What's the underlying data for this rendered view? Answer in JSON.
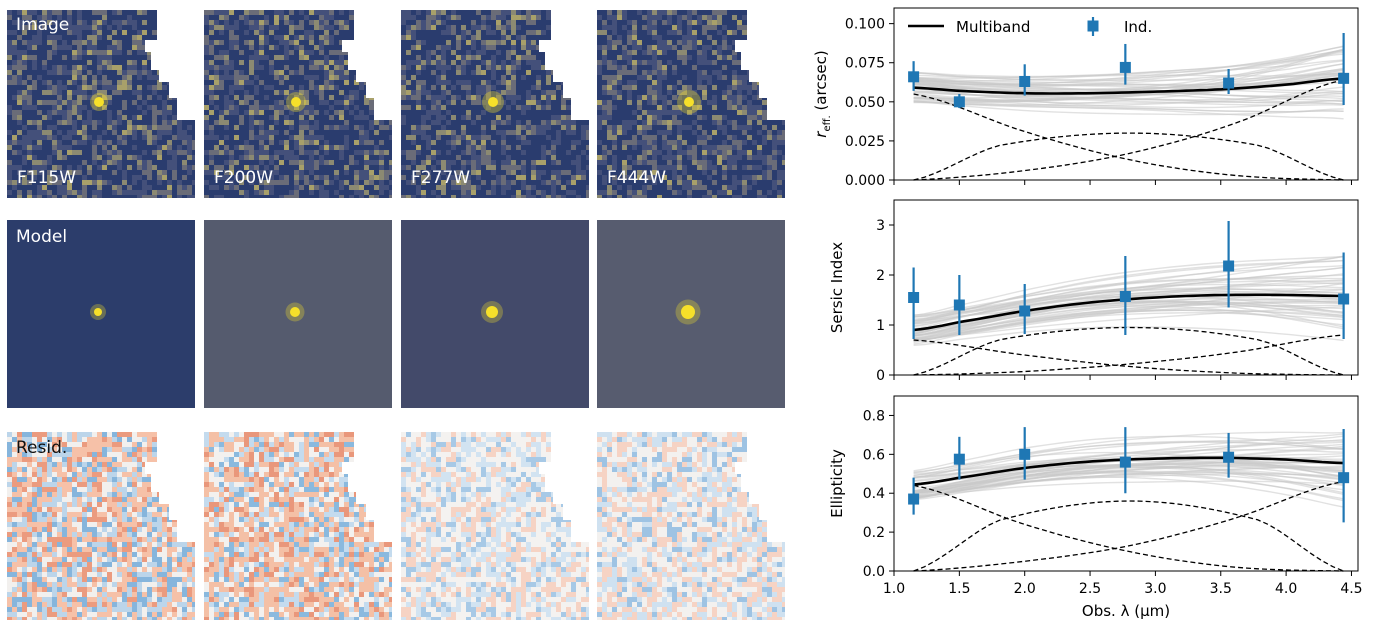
{
  "image_grid": {
    "row_labels": [
      "Image",
      "Model",
      "Resid."
    ],
    "bands": [
      "F115W",
      "F200W",
      "F277W",
      "F444W"
    ],
    "model_backgrounds": [
      "#2c3d6b",
      "#555b6e",
      "#434a6a",
      "#575c6f"
    ],
    "source_color": "#f6e02a"
  },
  "chart_data": [
    {
      "type": "line",
      "panel": "reff",
      "ylabel_main": "r",
      "ylabel_sub": "eff.",
      "ylabel_tail": " (arcsec)",
      "xlim": [
        1.0,
        4.55
      ],
      "ylim": [
        0.0,
        0.11
      ],
      "yticks": [
        0.0,
        0.025,
        0.05,
        0.075,
        0.1
      ],
      "ytick_labels": [
        "0.000",
        "0.025",
        "0.050",
        "0.075",
        "0.100"
      ],
      "legend": {
        "multiband": "Multiband",
        "ind": "Ind.",
        "position": "top"
      },
      "multiband_curve": {
        "x": [
          1.15,
          1.5,
          2.0,
          2.5,
          3.0,
          3.5,
          4.0,
          4.44
        ],
        "y": [
          0.059,
          0.057,
          0.0555,
          0.0555,
          0.0565,
          0.058,
          0.061,
          0.065
        ]
      },
      "dashed_basis": [
        {
          "x": [
            1.15,
            2.0,
            2.8,
            3.6,
            4.44
          ],
          "y": [
            0.055,
            0.031,
            0.013,
            0.003,
            0.0
          ]
        },
        {
          "x": [
            1.15,
            1.8,
            2.8,
            3.8,
            4.44
          ],
          "y": [
            0.0,
            0.022,
            0.03,
            0.022,
            0.0
          ]
        },
        {
          "x": [
            1.15,
            2.0,
            2.8,
            3.6,
            4.44
          ],
          "y": [
            0.0,
            0.006,
            0.017,
            0.036,
            0.064
          ]
        }
      ],
      "points": [
        {
          "x": 1.15,
          "y": 0.066,
          "lo": 0.057,
          "hi": 0.076
        },
        {
          "x": 1.5,
          "y": 0.05,
          "lo": 0.046,
          "hi": 0.055
        },
        {
          "x": 2.0,
          "y": 0.063,
          "lo": 0.054,
          "hi": 0.074
        },
        {
          "x": 2.77,
          "y": 0.072,
          "lo": 0.061,
          "hi": 0.087
        },
        {
          "x": 3.56,
          "y": 0.062,
          "lo": 0.055,
          "hi": 0.071
        },
        {
          "x": 4.44,
          "y": 0.065,
          "lo": 0.048,
          "hi": 0.094
        }
      ]
    },
    {
      "type": "line",
      "panel": "sersic",
      "ylabel": "Sersic Index",
      "xlim": [
        1.0,
        4.55
      ],
      "ylim": [
        0.0,
        3.5
      ],
      "yticks": [
        0,
        1,
        2,
        3
      ],
      "ytick_labels": [
        "0",
        "1",
        "2",
        "3"
      ],
      "multiband_curve": {
        "x": [
          1.15,
          1.5,
          2.0,
          2.5,
          3.0,
          3.5,
          4.0,
          4.44
        ],
        "y": [
          0.9,
          1.06,
          1.28,
          1.45,
          1.55,
          1.6,
          1.6,
          1.58
        ]
      },
      "dashed_basis": [
        {
          "x": [
            1.15,
            2.0,
            2.8,
            3.6,
            4.44
          ],
          "y": [
            0.7,
            0.4,
            0.17,
            0.04,
            0.0
          ]
        },
        {
          "x": [
            1.15,
            1.8,
            2.8,
            3.8,
            4.44
          ],
          "y": [
            0.0,
            0.7,
            0.95,
            0.7,
            0.0
          ]
        },
        {
          "x": [
            1.15,
            2.0,
            2.8,
            3.6,
            4.44
          ],
          "y": [
            0.0,
            0.07,
            0.22,
            0.45,
            0.8
          ]
        }
      ],
      "points": [
        {
          "x": 1.15,
          "y": 1.55,
          "lo": 0.72,
          "hi": 2.15
        },
        {
          "x": 1.5,
          "y": 1.4,
          "lo": 0.8,
          "hi": 2.0
        },
        {
          "x": 2.0,
          "y": 1.28,
          "lo": 0.82,
          "hi": 1.82
        },
        {
          "x": 2.77,
          "y": 1.57,
          "lo": 0.8,
          "hi": 2.38
        },
        {
          "x": 3.56,
          "y": 2.18,
          "lo": 1.35,
          "hi": 3.08
        },
        {
          "x": 4.44,
          "y": 1.52,
          "lo": 0.72,
          "hi": 2.45
        }
      ]
    },
    {
      "type": "line",
      "panel": "ellipticity",
      "ylabel": "Ellipticity",
      "xlabel": "Obs. λ (μm)",
      "xlim": [
        1.0,
        4.55
      ],
      "ylim": [
        0.0,
        0.9
      ],
      "yticks": [
        0.0,
        0.2,
        0.4,
        0.6,
        0.8
      ],
      "ytick_labels": [
        "0.0",
        "0.2",
        "0.4",
        "0.6",
        "0.8"
      ],
      "xticks": [
        1.0,
        1.5,
        2.0,
        2.5,
        3.0,
        3.5,
        4.0,
        4.5
      ],
      "xtick_labels": [
        "1.0",
        "1.5",
        "2.0",
        "2.5",
        "3.0",
        "3.5",
        "4.0",
        "4.5"
      ],
      "multiband_curve": {
        "x": [
          1.15,
          1.5,
          2.0,
          2.5,
          3.0,
          3.5,
          4.0,
          4.44
        ],
        "y": [
          0.445,
          0.48,
          0.53,
          0.563,
          0.578,
          0.582,
          0.573,
          0.555
        ]
      },
      "dashed_basis": [
        {
          "x": [
            1.15,
            2.0,
            2.8,
            3.6,
            4.44
          ],
          "y": [
            0.44,
            0.24,
            0.1,
            0.02,
            0.0
          ]
        },
        {
          "x": [
            1.15,
            1.8,
            2.8,
            3.8,
            4.44
          ],
          "y": [
            0.0,
            0.26,
            0.36,
            0.26,
            0.0
          ]
        },
        {
          "x": [
            1.15,
            2.0,
            2.8,
            3.6,
            4.44
          ],
          "y": [
            0.0,
            0.05,
            0.13,
            0.27,
            0.46
          ]
        }
      ],
      "points": [
        {
          "x": 1.15,
          "y": 0.37,
          "lo": 0.29,
          "hi": 0.48
        },
        {
          "x": 1.5,
          "y": 0.575,
          "lo": 0.47,
          "hi": 0.69
        },
        {
          "x": 2.0,
          "y": 0.6,
          "lo": 0.47,
          "hi": 0.74
        },
        {
          "x": 2.77,
          "y": 0.56,
          "lo": 0.4,
          "hi": 0.74
        },
        {
          "x": 3.56,
          "y": 0.585,
          "lo": 0.48,
          "hi": 0.71
        },
        {
          "x": 4.44,
          "y": 0.48,
          "lo": 0.25,
          "hi": 0.73
        }
      ]
    }
  ],
  "colors": {
    "marker": "#1f77b4",
    "multiband": "#000000",
    "samples": "#c8c8c8",
    "axis": "#000000"
  }
}
